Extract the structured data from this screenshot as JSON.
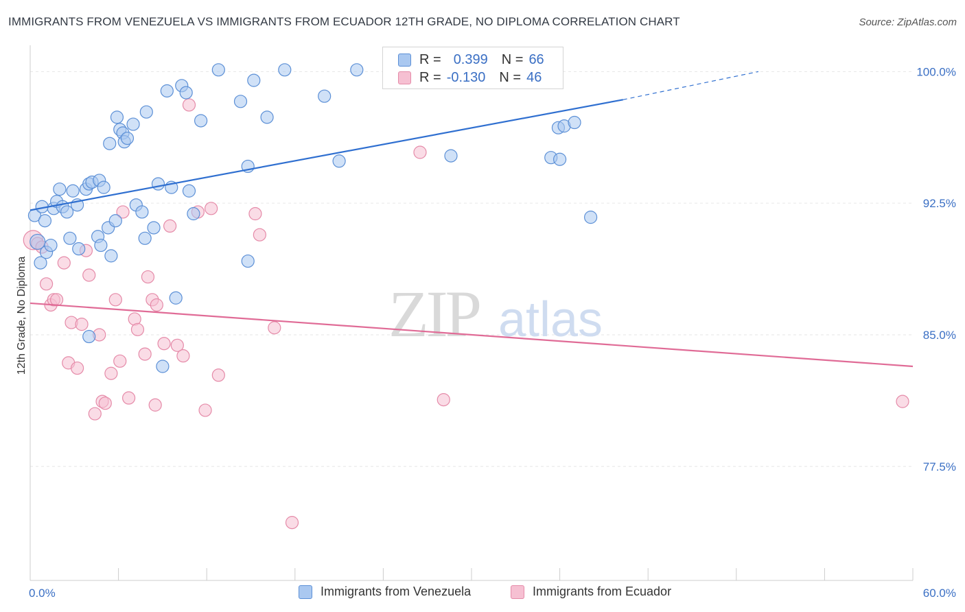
{
  "header": {
    "title": "IMMIGRANTS FROM VENEZUELA VS IMMIGRANTS FROM ECUADOR 12TH GRADE, NO DIPLOMA CORRELATION CHART",
    "source": "Source: ZipAtlas.com"
  },
  "legend": {
    "rows": [
      {
        "r_label": "R =",
        "r_value": "0.399",
        "n_label": "N =",
        "n_value": "66"
      },
      {
        "r_label": "R =",
        "r_value": "-0.130",
        "n_label": "N =",
        "n_value": "46"
      }
    ]
  },
  "watermark": {
    "zip": "ZIP",
    "atlas": "atlas"
  },
  "colors": {
    "venezuela_fill": "#aac8f0",
    "venezuela_stroke": "#5b8fd6",
    "venezuela_line": "#2f6fd0",
    "ecuador_fill": "#f6c0d2",
    "ecuador_stroke": "#e58aa8",
    "ecuador_line": "#e06b96",
    "axis_label": "#3a6fc4",
    "grid": "#e6e6e6"
  },
  "chart_data": {
    "type": "scatter",
    "xlabel": "",
    "ylabel": "12th Grade, No Diploma",
    "xlim": [
      0,
      60
    ],
    "ylim": [
      71,
      101.5
    ],
    "x_tick_labels": [
      "0.0%",
      "60.0%"
    ],
    "y_ticks": [
      77.5,
      85.0,
      92.5,
      100.0
    ],
    "y_tick_labels": [
      "77.5%",
      "85.0%",
      "92.5%",
      "100.0%"
    ],
    "grid": true,
    "legend_position": "top-center",
    "series": [
      {
        "name": "Immigrants from Venezuela",
        "r": 0.399,
        "n": 66,
        "trend": {
          "x0": 0,
          "y0": 92.1,
          "x1": 40.3,
          "y1": 98.4,
          "dashed_to_x": 49.5,
          "dashed_to_y": 100.0
        },
        "points": [
          [
            0.3,
            91.8
          ],
          [
            0.5,
            90.3
          ],
          [
            0.7,
            89.1
          ],
          [
            0.8,
            92.3
          ],
          [
            1.0,
            91.5
          ],
          [
            1.1,
            89.7
          ],
          [
            1.4,
            90.1
          ],
          [
            1.6,
            92.2
          ],
          [
            1.8,
            92.6
          ],
          [
            2.0,
            93.3
          ],
          [
            2.2,
            92.3
          ],
          [
            2.5,
            92.0
          ],
          [
            2.7,
            90.5
          ],
          [
            2.9,
            93.2
          ],
          [
            3.2,
            92.4
          ],
          [
            3.3,
            89.9
          ],
          [
            3.8,
            93.3
          ],
          [
            4.0,
            84.9
          ],
          [
            4.0,
            93.6
          ],
          [
            4.2,
            93.7
          ],
          [
            4.6,
            90.6
          ],
          [
            4.7,
            93.8
          ],
          [
            4.8,
            90.1
          ],
          [
            5.0,
            93.4
          ],
          [
            5.3,
            91.1
          ],
          [
            5.4,
            95.9
          ],
          [
            5.5,
            89.5
          ],
          [
            5.8,
            91.5
          ],
          [
            5.9,
            97.4
          ],
          [
            6.1,
            96.7
          ],
          [
            6.3,
            96.5
          ],
          [
            6.4,
            96.0
          ],
          [
            6.6,
            96.2
          ],
          [
            7.0,
            97.0
          ],
          [
            7.2,
            92.4
          ],
          [
            7.6,
            92.0
          ],
          [
            7.8,
            90.5
          ],
          [
            7.9,
            97.7
          ],
          [
            8.4,
            91.1
          ],
          [
            8.7,
            93.6
          ],
          [
            9.0,
            83.2
          ],
          [
            9.3,
            98.9
          ],
          [
            9.6,
            93.4
          ],
          [
            9.9,
            87.1
          ],
          [
            10.3,
            99.2
          ],
          [
            10.6,
            98.8
          ],
          [
            10.8,
            93.2
          ],
          [
            11.1,
            91.9
          ],
          [
            11.6,
            97.2
          ],
          [
            12.8,
            100.1
          ],
          [
            14.3,
            98.3
          ],
          [
            14.8,
            89.2
          ],
          [
            14.8,
            94.6
          ],
          [
            15.2,
            99.5
          ],
          [
            16.1,
            97.4
          ],
          [
            17.3,
            100.1
          ],
          [
            20.0,
            98.6
          ],
          [
            21.0,
            94.9
          ],
          [
            22.2,
            100.1
          ],
          [
            28.6,
            95.2
          ],
          [
            35.4,
            95.1
          ],
          [
            35.9,
            96.8
          ],
          [
            36.0,
            95.0
          ],
          [
            36.3,
            96.9
          ],
          [
            37.0,
            97.1
          ],
          [
            38.1,
            91.7
          ]
        ]
      },
      {
        "name": "Immigrants from Ecuador",
        "r": -0.13,
        "n": 46,
        "trend": {
          "x0": 0,
          "y0": 86.8,
          "x1": 60,
          "y1": 83.2
        },
        "points": [
          [
            0.2,
            90.4
          ],
          [
            0.5,
            90.2
          ],
          [
            0.8,
            90.0
          ],
          [
            1.1,
            87.9
          ],
          [
            1.4,
            86.7
          ],
          [
            1.6,
            87.0
          ],
          [
            1.8,
            87.0
          ],
          [
            2.3,
            89.1
          ],
          [
            2.6,
            83.4
          ],
          [
            2.8,
            85.7
          ],
          [
            3.2,
            83.1
          ],
          [
            3.5,
            85.6
          ],
          [
            3.8,
            89.8
          ],
          [
            4.0,
            88.4
          ],
          [
            4.4,
            80.5
          ],
          [
            4.7,
            85.0
          ],
          [
            4.9,
            81.2
          ],
          [
            5.1,
            81.1
          ],
          [
            5.5,
            82.8
          ],
          [
            5.8,
            87.0
          ],
          [
            6.1,
            83.5
          ],
          [
            6.3,
            92.0
          ],
          [
            6.7,
            81.4
          ],
          [
            7.1,
            85.9
          ],
          [
            7.3,
            85.3
          ],
          [
            7.8,
            83.9
          ],
          [
            8.0,
            88.3
          ],
          [
            8.3,
            87.0
          ],
          [
            8.5,
            81.0
          ],
          [
            8.6,
            86.7
          ],
          [
            9.1,
            84.5
          ],
          [
            9.5,
            91.2
          ],
          [
            10.0,
            84.4
          ],
          [
            10.4,
            83.8
          ],
          [
            10.8,
            98.1
          ],
          [
            11.4,
            92.0
          ],
          [
            11.9,
            80.7
          ],
          [
            12.3,
            92.2
          ],
          [
            12.8,
            82.7
          ],
          [
            15.3,
            91.9
          ],
          [
            15.6,
            90.7
          ],
          [
            16.6,
            85.4
          ],
          [
            17.8,
            74.3
          ],
          [
            26.5,
            95.4
          ],
          [
            28.1,
            81.3
          ],
          [
            59.3,
            81.2
          ]
        ]
      }
    ]
  }
}
